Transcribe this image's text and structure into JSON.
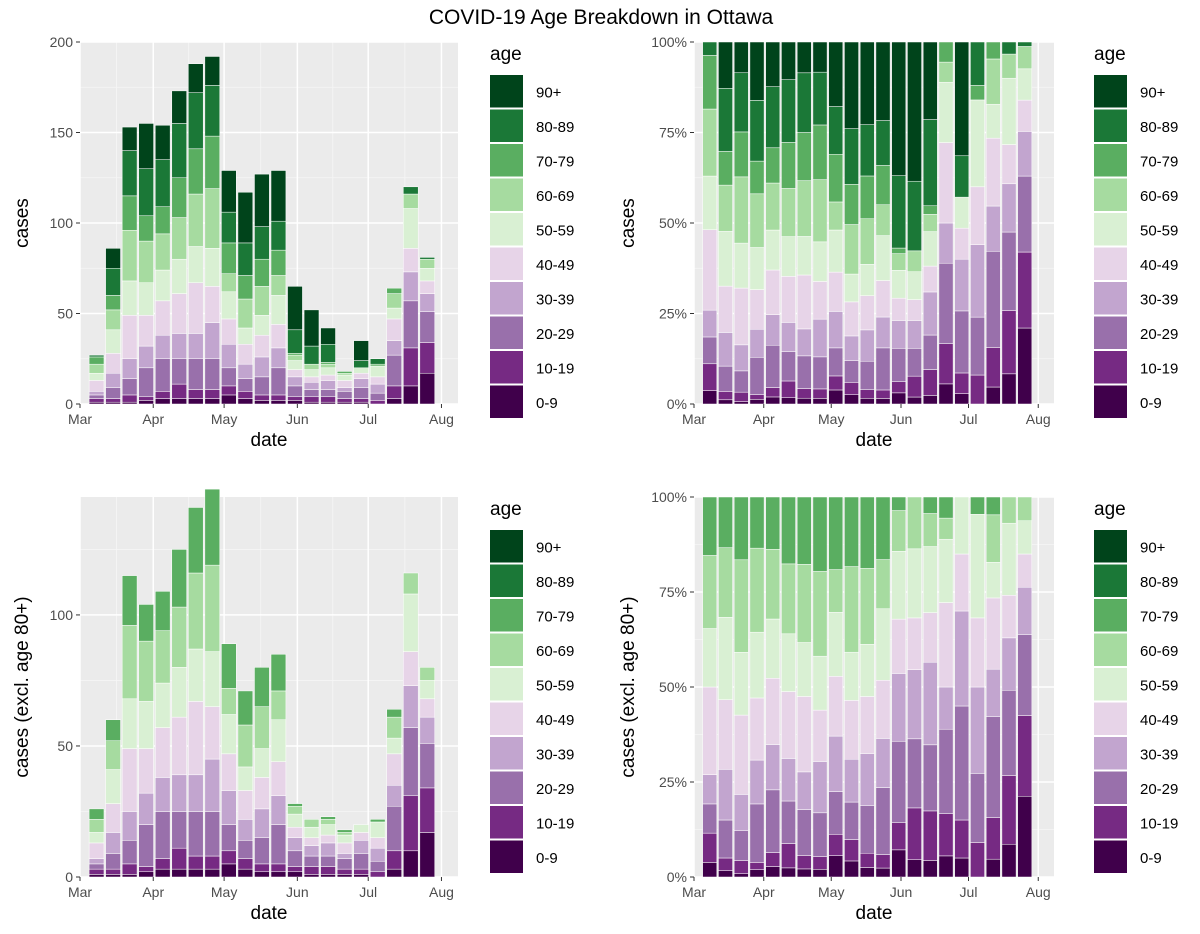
{
  "title": "COVID-19 Age Breakdown in Ottawa",
  "age_groups": [
    "0-9",
    "10-19",
    "20-29",
    "30-39",
    "40-49",
    "50-59",
    "60-69",
    "70-79",
    "80-89",
    "90+"
  ],
  "age_colors": [
    "#40004b",
    "#762a83",
    "#9970ab",
    "#c2a5cf",
    "#e7d4e8",
    "#d9f0d3",
    "#a6dba0",
    "#5aae61",
    "#1b7837",
    "#00441b"
  ],
  "chart_data": [
    {
      "type": "bar",
      "stacking": "stacked",
      "title": "",
      "xlabel": "date",
      "ylabel": "cases",
      "ylim": [
        0,
        200
      ],
      "yticks": [
        0,
        50,
        100,
        150,
        200
      ],
      "ytick_labels": [
        "0",
        "50",
        "100",
        "150",
        "200"
      ],
      "xlim": [
        0,
        160
      ],
      "xticks": [
        0,
        31,
        61,
        92,
        122,
        153
      ],
      "xtick_labels": [
        "Mar",
        "Apr",
        "May",
        "Jun",
        "Jul",
        "Aug"
      ],
      "legend_title": "age",
      "legend_position": "right",
      "categories": [
        "2020-03-09",
        "2020-03-16",
        "2020-03-23",
        "2020-03-30",
        "2020-04-06",
        "2020-04-13",
        "2020-04-20",
        "2020-04-27",
        "2020-05-04",
        "2020-05-11",
        "2020-05-18",
        "2020-05-25",
        "2020-06-01",
        "2020-06-08",
        "2020-06-15",
        "2020-06-22",
        "2020-06-29",
        "2020-07-06",
        "2020-07-13",
        "2020-07-20",
        "2020-07-27"
      ],
      "x": [
        7,
        14,
        21,
        28,
        35,
        42,
        49,
        56,
        63,
        70,
        77,
        84,
        91,
        98,
        105,
        112,
        119,
        126,
        133,
        140,
        147
      ],
      "series": [
        {
          "name": "0-9",
          "values": [
            1,
            1,
            1,
            2,
            3,
            3,
            3,
            3,
            5,
            3,
            2,
            2,
            2,
            1,
            1,
            1,
            1,
            0,
            3,
            10,
            17
          ]
        },
        {
          "name": "10-19",
          "values": [
            2,
            2,
            4,
            2,
            4,
            8,
            5,
            5,
            5,
            4,
            3,
            3,
            2,
            3,
            3,
            2,
            2,
            2,
            7,
            21,
            17
          ]
        },
        {
          "name": "20-29",
          "values": [
            2,
            6,
            9,
            16,
            18,
            14,
            17,
            17,
            10,
            7,
            10,
            15,
            6,
            4,
            4,
            4,
            6,
            4,
            17,
            26,
            17
          ]
        },
        {
          "name": "30-39",
          "values": [
            2,
            8,
            11,
            12,
            13,
            14,
            14,
            20,
            13,
            8,
            11,
            11,
            5,
            4,
            5,
            2,
            5,
            5,
            8,
            16,
            10
          ]
        },
        {
          "name": "40-49",
          "values": [
            6,
            11,
            24,
            17,
            19,
            22,
            28,
            20,
            14,
            11,
            12,
            13,
            4,
            3,
            3,
            4,
            3,
            4,
            12,
            13,
            7
          ]
        },
        {
          "name": "50-59",
          "values": [
            4,
            13,
            19,
            18,
            17,
            19,
            20,
            21,
            15,
            9,
            11,
            16,
            5,
            4,
            4,
            3,
            3,
            6,
            6,
            22,
            7
          ]
        },
        {
          "name": "60-69",
          "values": [
            5,
            11,
            28,
            23,
            20,
            23,
            29,
            33,
            10,
            16,
            16,
            11,
            3,
            3,
            2,
            1,
            0,
            0,
            8,
            8,
            5
          ]
        },
        {
          "name": "70-79",
          "values": [
            4,
            8,
            19,
            14,
            15,
            22,
            25,
            29,
            17,
            13,
            15,
            14,
            1,
            0,
            1,
            1,
            0,
            1,
            3,
            0,
            0
          ]
        },
        {
          "name": "80-89",
          "values": [
            1,
            15,
            25,
            26,
            26,
            30,
            31,
            28,
            17,
            18,
            18,
            16,
            13,
            10,
            10,
            0,
            4,
            3,
            0,
            4,
            1
          ]
        },
        {
          "name": "90+",
          "values": [
            0,
            11,
            13,
            25,
            19,
            18,
            16,
            16,
            23,
            28,
            29,
            28,
            24,
            20,
            9,
            0,
            11,
            0,
            0,
            0,
            0
          ]
        }
      ]
    },
    {
      "type": "bar",
      "stacking": "percent",
      "title": "",
      "xlabel": "date",
      "ylabel": "cases",
      "ylim": [
        0,
        1
      ],
      "yticks": [
        0,
        0.25,
        0.5,
        0.75,
        1
      ],
      "ytick_labels": [
        "0%",
        "25%",
        "50%",
        "75%",
        "100%"
      ],
      "xlim": [
        0,
        160
      ],
      "xticks": [
        0,
        31,
        61,
        92,
        122,
        153
      ],
      "xtick_labels": [
        "Mar",
        "Apr",
        "May",
        "Jun",
        "Jul",
        "Aug"
      ],
      "legend_title": "age",
      "legend_position": "right",
      "note": "same data as first chart, normalized to 100% per week",
      "source_chart_index": 0
    },
    {
      "type": "bar",
      "stacking": "stacked",
      "title": "",
      "xlabel": "date",
      "ylabel": "cases (excl. age 80+)",
      "ylim": [
        0,
        145
      ],
      "yticks": [
        0,
        50,
        100
      ],
      "ytick_labels": [
        "0",
        "50",
        "100"
      ],
      "xlim": [
        0,
        160
      ],
      "xticks": [
        0,
        31,
        61,
        92,
        122,
        153
      ],
      "xtick_labels": [
        "Mar",
        "Apr",
        "May",
        "Jun",
        "Jul",
        "Aug"
      ],
      "legend_title": "age",
      "legend_position": "right",
      "note": "same data as first chart excluding 80-89 and 90+",
      "source_chart_index": 0,
      "excluded_series": [
        "80-89",
        "90+"
      ]
    },
    {
      "type": "bar",
      "stacking": "percent",
      "title": "",
      "xlabel": "date",
      "ylabel": "cases (excl. age 80+)",
      "ylim": [
        0,
        1
      ],
      "yticks": [
        0,
        0.25,
        0.5,
        0.75,
        1
      ],
      "ytick_labels": [
        "0%",
        "25%",
        "50%",
        "75%",
        "100%"
      ],
      "xlim": [
        0,
        160
      ],
      "xticks": [
        0,
        31,
        61,
        92,
        122,
        153
      ],
      "xtick_labels": [
        "Mar",
        "Apr",
        "May",
        "Jun",
        "Jul",
        "Aug"
      ],
      "legend_title": "age",
      "legend_position": "right",
      "note": "same data as first chart excluding 80+, normalized to 100% per week",
      "source_chart_index": 0,
      "excluded_series": [
        "80-89",
        "90+"
      ]
    }
  ]
}
